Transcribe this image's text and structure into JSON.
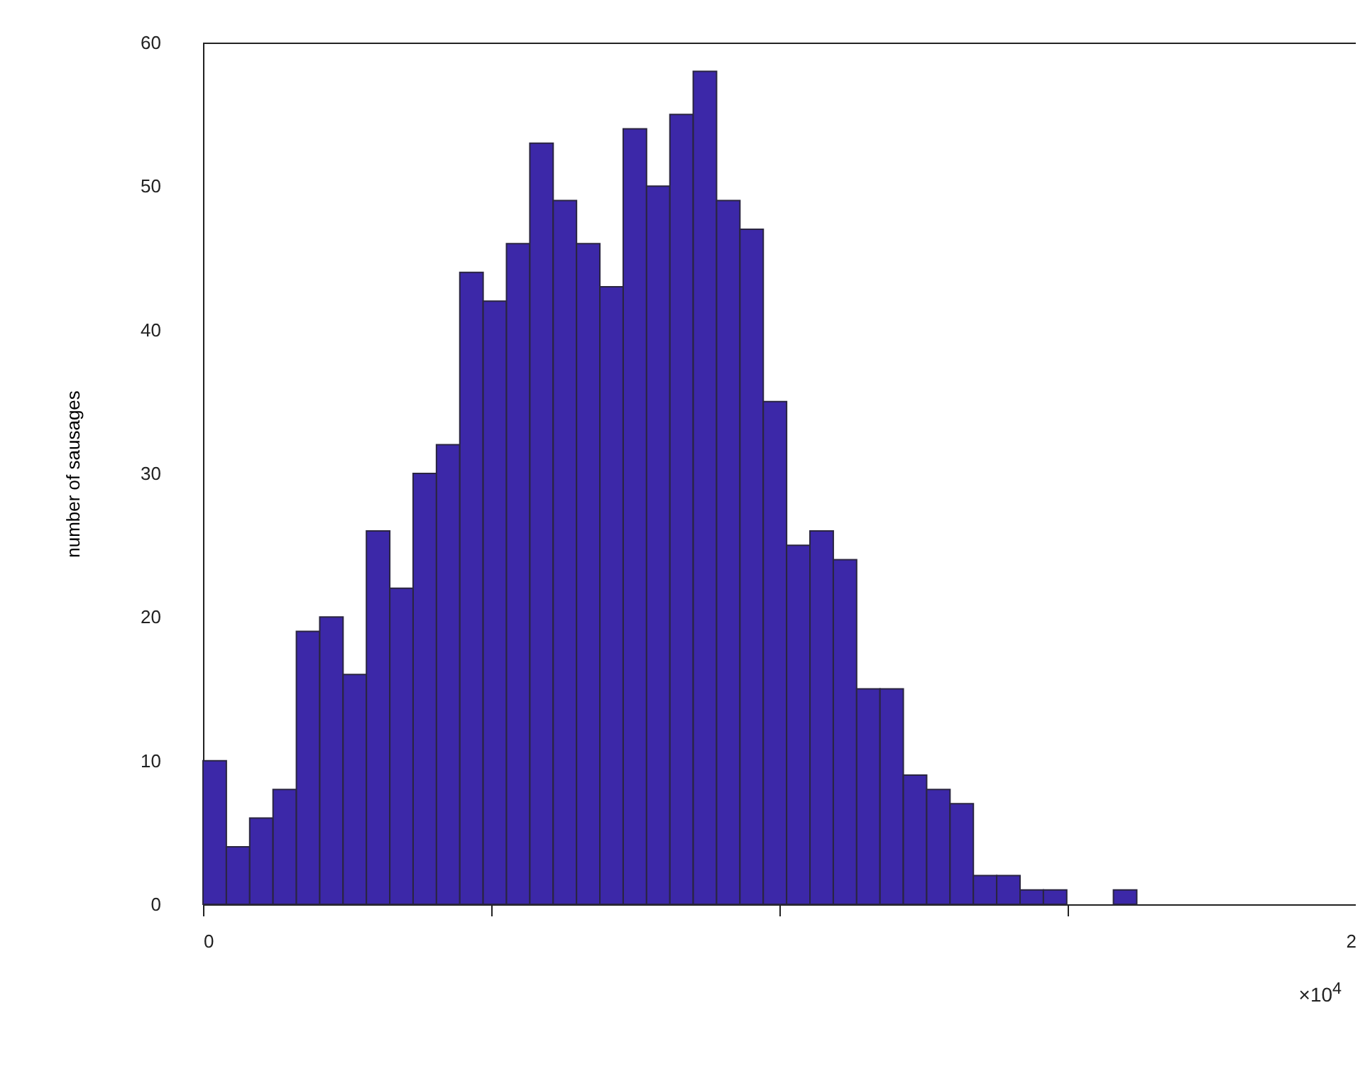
{
  "chart_data": {
    "type": "histogram",
    "ylabel": "number of sausages",
    "bins": [
      0,
      0.0405,
      0.081,
      0.1215,
      0.162,
      0.2025,
      0.243,
      0.2835,
      0.324,
      0.3645,
      0.405,
      0.4455,
      0.486,
      0.5265,
      0.567,
      0.6075,
      0.648,
      0.6885,
      0.729,
      0.7695,
      0.81,
      0.8505,
      0.891,
      0.9315,
      0.972,
      1.0125,
      1.053,
      1.0935,
      1.134,
      1.1745,
      1.215,
      1.2555,
      1.296,
      1.3365,
      1.377,
      1.4175,
      1.458,
      1.4985,
      1.539,
      1.5795,
      1.62
    ],
    "values": [
      10,
      4,
      6,
      8,
      19,
      20,
      16,
      26,
      22,
      30,
      32,
      44,
      42,
      46,
      53,
      49,
      46,
      43,
      54,
      50,
      55,
      58,
      49,
      47,
      35,
      25,
      26,
      24,
      15,
      15,
      9,
      8,
      7,
      2,
      2,
      1,
      1,
      0,
      0,
      1
    ],
    "color": "#3c28a8",
    "xlim": [
      0,
      2
    ],
    "xticks": [
      0,
      {
        "value": 0.5,
        "label": null
      },
      {
        "value": 1,
        "label": null
      },
      {
        "value": 1.5,
        "label": null
      },
      2
    ],
    "ylim": [
      0,
      60
    ],
    "yticks": [
      0,
      10,
      20,
      30,
      40,
      50,
      60
    ],
    "grid": false,
    "annotations": [
      "×10$^{4}$"
    ]
  }
}
